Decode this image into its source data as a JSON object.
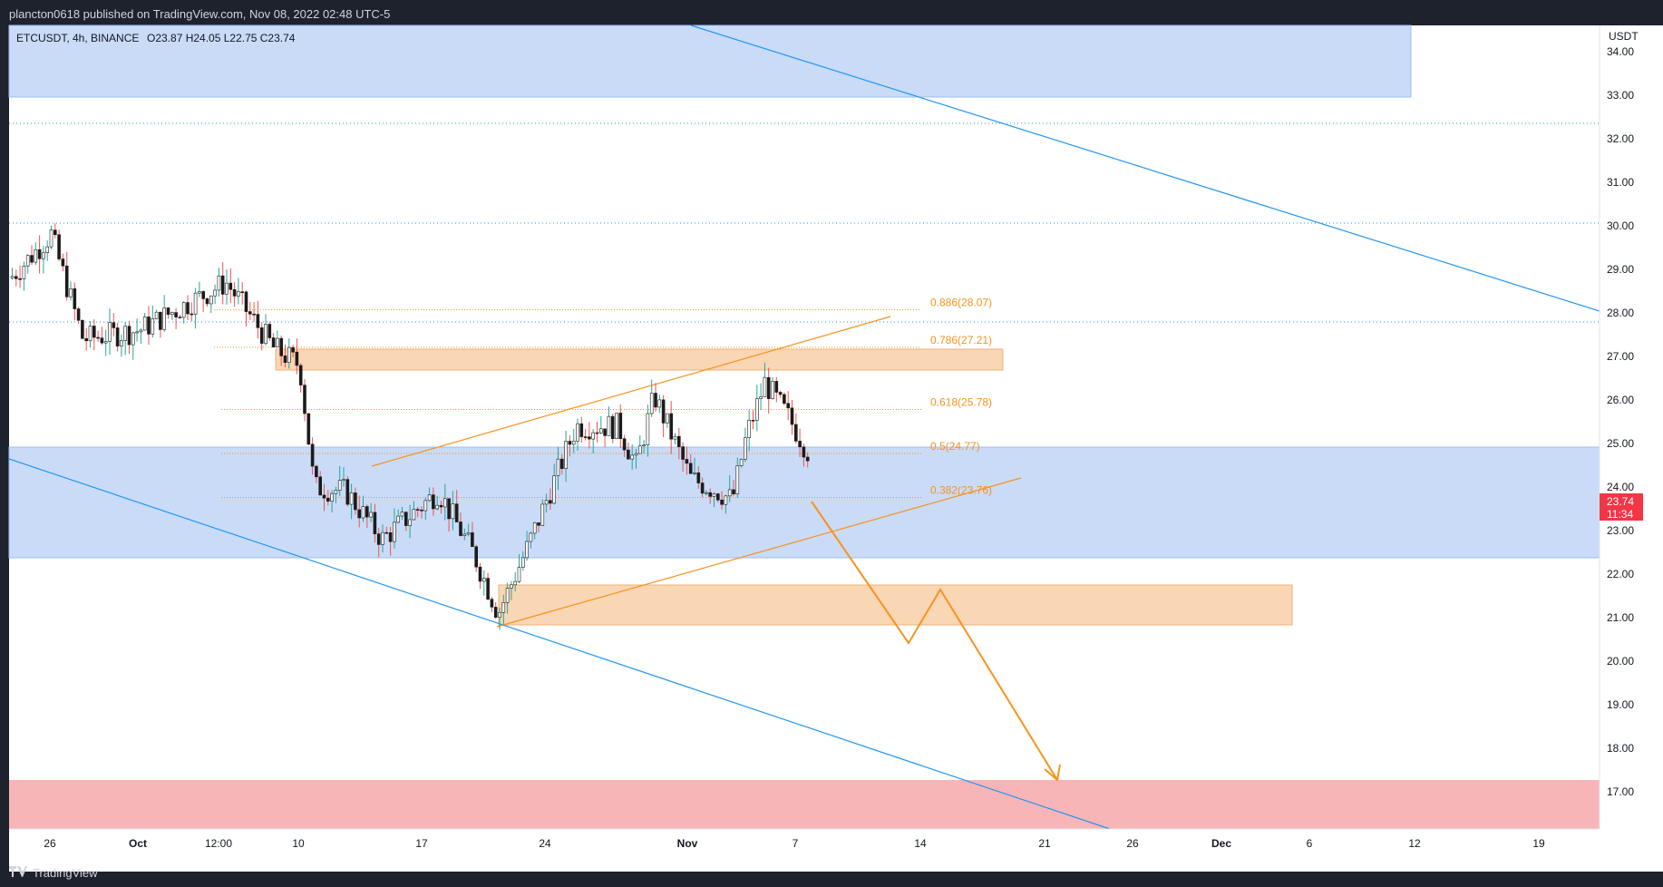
{
  "header": {
    "publish_text": "plancton0618 published on TradingView.com, Nov 08, 2022 02:48 UTC-5"
  },
  "legend": {
    "symbol_text": "ETCUSDT, 4h, BINANCE",
    "ohlc_text": "O23.87  H24.05  L22.75  C23.74"
  },
  "axis": {
    "currency": "USDT",
    "y_ticks": [
      "34.00",
      "33.00",
      "32.00",
      "31.00",
      "30.00",
      "29.00",
      "28.00",
      "27.00",
      "26.00",
      "25.00",
      "24.00",
      "23.00",
      "22.00",
      "21.00",
      "20.00",
      "19.00",
      "18.00",
      "17.00"
    ],
    "x_ticks": [
      "26",
      "Oct",
      "12:00",
      "10",
      "17",
      "24",
      "Nov",
      "7",
      "14",
      "21",
      "26",
      "Dec",
      "6",
      "12",
      "19"
    ]
  },
  "price_tag": {
    "price": "23.74",
    "countdown": "11:34",
    "color": "#f23645"
  },
  "fib_levels": [
    {
      "label": "0.886(28.07)",
      "price": 28.07
    },
    {
      "label": "0.786(27.21)",
      "price": 27.21
    },
    {
      "label": "0.618(25.78)",
      "price": 25.78
    },
    {
      "label": "0.5(24.77)",
      "price": 24.77
    },
    {
      "label": "0.382(23.76)",
      "price": 23.76
    }
  ],
  "footer": {
    "brand": "TradingView"
  },
  "colors": {
    "candle_up": "#26a69a",
    "candle_down": "#ef5350",
    "candle_body": "#1b1b1b",
    "blue_zone": "#c9dbf7",
    "orange_zone": "#f9d6b4",
    "red_zone": "#f8b5b8",
    "blue_line": "#2196f3",
    "orange_line": "#f7931e"
  },
  "chart_data": {
    "type": "candlestick",
    "symbol": "ETCUSDT",
    "timeframe": "4h",
    "exchange": "BINANCE",
    "ylim": [
      16,
      34.6
    ],
    "series": [
      {
        "name": "ETCUSDT",
        "x": [
          "Sep 22",
          "Sep 25",
          "Sep 27",
          "Oct 1",
          "Oct 4",
          "Oct 7",
          "Oct 9",
          "Oct 11",
          "Oct 13",
          "Oct 15",
          "Oct 18",
          "Oct 20",
          "Oct 22",
          "Oct 24",
          "Oct 25",
          "Oct 26",
          "Oct 28",
          "Oct 29",
          "Oct 31",
          "Nov 2",
          "Nov 3",
          "Nov 4",
          "Nov 5",
          "Nov 6",
          "Nov 7",
          "Nov 8"
        ],
        "values": [
          28.8,
          29.8,
          27.4,
          27.6,
          28.7,
          27.2,
          26.8,
          24.0,
          23.9,
          22.8,
          23.9,
          22.5,
          21.1,
          22.6,
          25.4,
          25.4,
          24.5,
          26.1,
          24.2,
          23.9,
          23.7,
          25.2,
          26.4,
          25.6,
          24.8,
          23.74
        ]
      }
    ]
  }
}
